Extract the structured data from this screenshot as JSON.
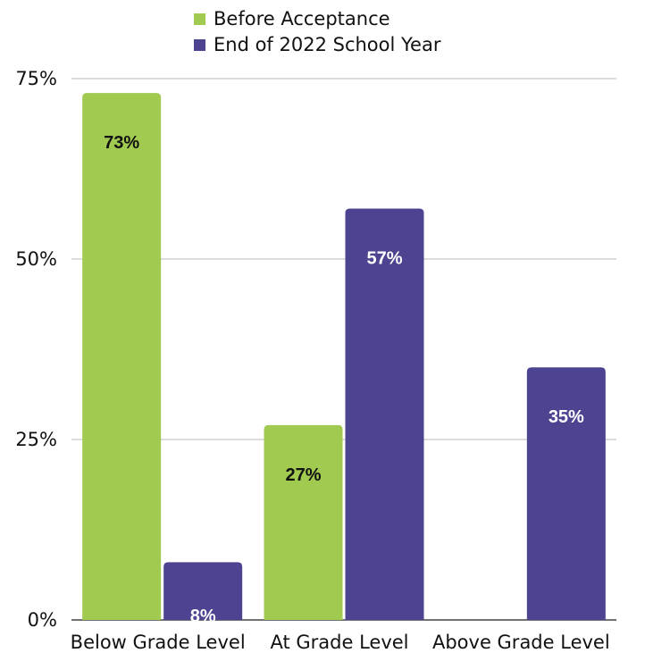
{
  "chart_data": {
    "type": "bar",
    "title": "",
    "xlabel": "",
    "ylabel": "",
    "categories": [
      "Below Grade Level",
      "At Grade Level",
      "Above Grade Level"
    ],
    "series": [
      {
        "name": "Before Acceptance",
        "color": "#a1ca50",
        "label_color": "#111111",
        "values": [
          73,
          27,
          0
        ],
        "labels": [
          "73%",
          "27%",
          ""
        ]
      },
      {
        "name": "End of 2022 School Year",
        "color": "#4c4491",
        "label_color": "#ffffff",
        "values": [
          8,
          57,
          35
        ],
        "labels": [
          "8%",
          "57%",
          "35%"
        ]
      }
    ],
    "ylim": [
      0,
      75
    ],
    "yticks": [
      0,
      25,
      50,
      75
    ],
    "ytick_labels": [
      "0%",
      "25%",
      "50%",
      "75%"
    ],
    "grid": true,
    "legend_position": "top-center"
  }
}
